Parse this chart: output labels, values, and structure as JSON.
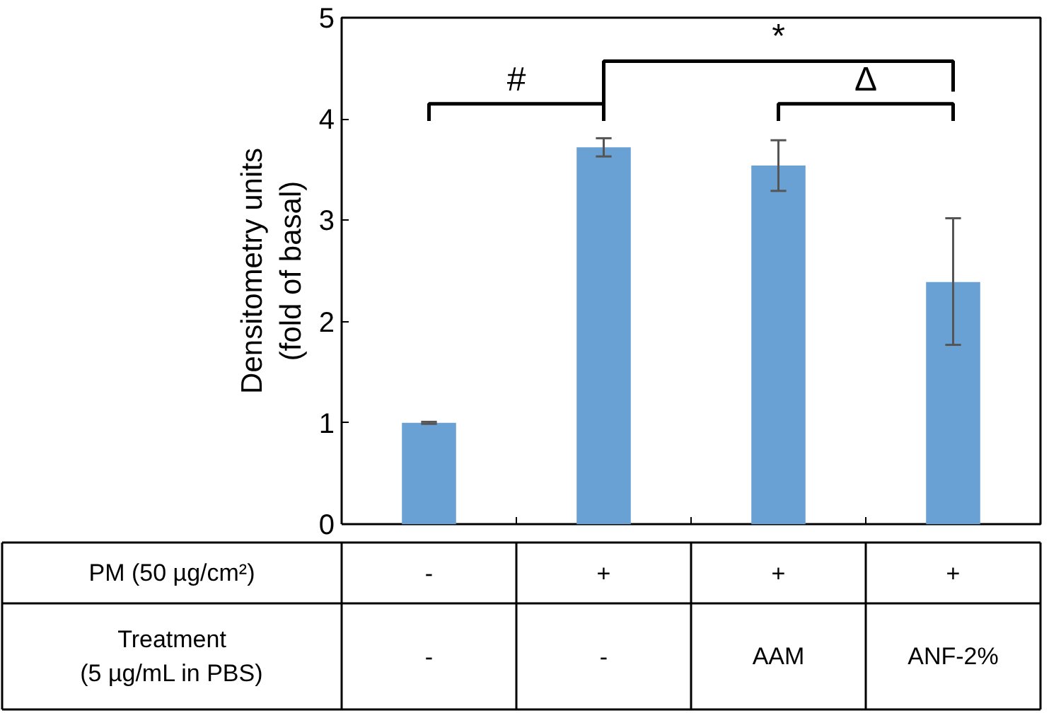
{
  "chart_data": {
    "type": "bar",
    "ylabel": "Densitometry units\n(fold of basal)",
    "categories": [
      "-\n-",
      "+\n-",
      "+\nAAM",
      "+\nANF-2%"
    ],
    "values": [
      1.0,
      3.72,
      3.54,
      2.39
    ],
    "errors": [
      0.01,
      0.09,
      0.25,
      [
        1.77,
        3.02
      ]
    ],
    "color": "#6aa1d5",
    "ylim": [
      0,
      5
    ],
    "yticks": [
      0,
      1,
      2,
      3,
      4,
      5
    ],
    "grid": false,
    "annotations": [
      "#",
      "*",
      "Δ",
      "PM (50 µg/cm²)",
      "Treatment\n(5 µg/mL in PBS)"
    ]
  }
}
